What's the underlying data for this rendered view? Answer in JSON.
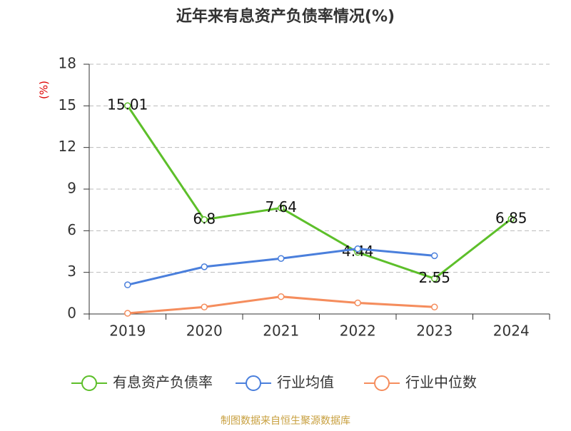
{
  "chart_data": {
    "type": "line",
    "title": "近年来有息资产负债率情况(%)",
    "y_label": "(%)",
    "categories": [
      "2019",
      "2020",
      "2021",
      "2022",
      "2023",
      "2024"
    ],
    "series": [
      {
        "name": "有息资产负债率",
        "color": "#5dbf2a",
        "values": [
          15.01,
          6.8,
          7.64,
          4.44,
          2.55,
          6.85
        ],
        "show_labels": true
      },
      {
        "name": "行业均值",
        "color": "#4a7fdc",
        "values": [
          2.1,
          3.4,
          4.0,
          4.7,
          4.2,
          null
        ]
      },
      {
        "name": "行业中位数",
        "color": "#f58d5d",
        "values": [
          0.05,
          0.5,
          1.25,
          0.8,
          0.5,
          null
        ]
      }
    ],
    "ylim": [
      0,
      18
    ],
    "yticks": [
      0,
      3,
      6,
      9,
      12,
      15,
      18
    ],
    "grid": true,
    "legend": "bottom",
    "source": "制图数据来自恒生聚源数据库"
  }
}
